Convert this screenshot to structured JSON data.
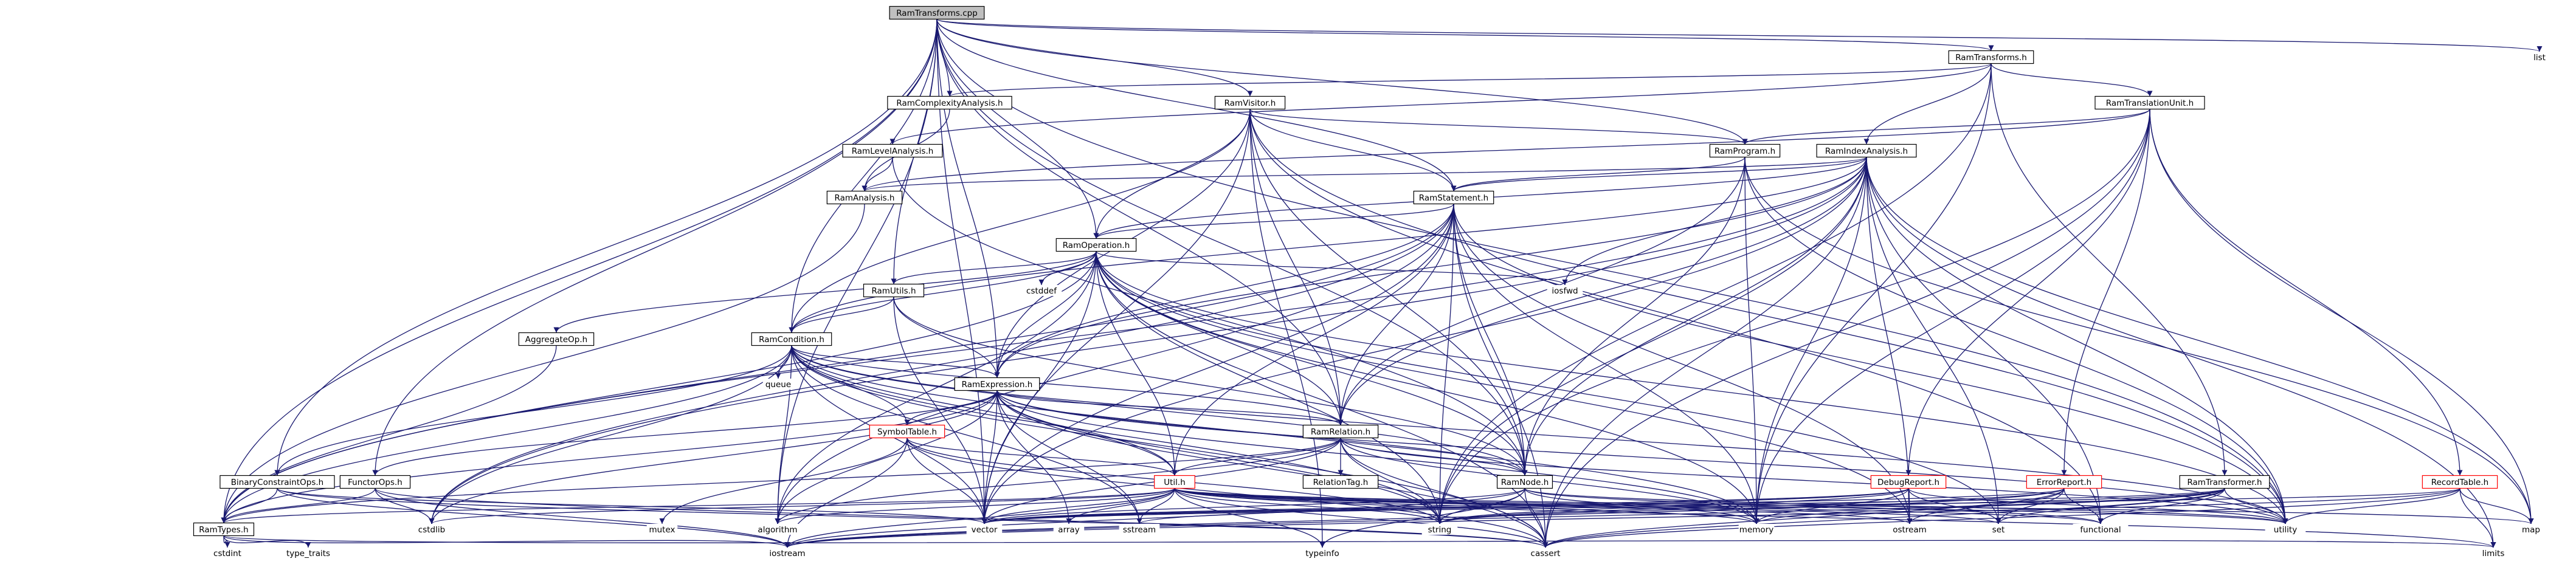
{
  "colors": {
    "edge": "#191970",
    "node_border": "#000000",
    "node_fill": "#ffffff",
    "root_fill": "#bfbfbf",
    "unresolved_border": "#ff0000",
    "text": "#000000"
  },
  "nodes": [
    {
      "id": "n_root",
      "label": "RamTransforms.cpp",
      "kind": "root"
    },
    {
      "id": "n_ramtransforms_h",
      "label": "RamTransforms.h",
      "kind": "header"
    },
    {
      "id": "n_list",
      "label": "list",
      "kind": "system"
    },
    {
      "id": "n_complexity",
      "label": "RamComplexityAnalysis.h",
      "kind": "header"
    },
    {
      "id": "n_visitor",
      "label": "RamVisitor.h",
      "kind": "header"
    },
    {
      "id": "n_translationunit",
      "label": "RamTranslationUnit.h",
      "kind": "header"
    },
    {
      "id": "n_levelanalysis",
      "label": "RamLevelAnalysis.h",
      "kind": "header"
    },
    {
      "id": "n_program",
      "label": "RamProgram.h",
      "kind": "header"
    },
    {
      "id": "n_indexanalysis",
      "label": "RamIndexAnalysis.h",
      "kind": "header"
    },
    {
      "id": "n_analysis",
      "label": "RamAnalysis.h",
      "kind": "header"
    },
    {
      "id": "n_statement",
      "label": "RamStatement.h",
      "kind": "header"
    },
    {
      "id": "n_operation",
      "label": "RamOperation.h",
      "kind": "header"
    },
    {
      "id": "n_utils",
      "label": "RamUtils.h",
      "kind": "header"
    },
    {
      "id": "n_cstddef",
      "label": "cstddef",
      "kind": "system"
    },
    {
      "id": "n_iosfwd",
      "label": "iosfwd",
      "kind": "system"
    },
    {
      "id": "n_aggregateop",
      "label": "AggregateOp.h",
      "kind": "header"
    },
    {
      "id": "n_condition",
      "label": "RamCondition.h",
      "kind": "header"
    },
    {
      "id": "n_queue",
      "label": "queue",
      "kind": "system"
    },
    {
      "id": "n_expression",
      "label": "RamExpression.h",
      "kind": "header"
    },
    {
      "id": "n_symboltable",
      "label": "SymbolTable.h",
      "kind": "unresolved"
    },
    {
      "id": "n_relation",
      "label": "RamRelation.h",
      "kind": "header"
    },
    {
      "id": "n_binaryconstraintops",
      "label": "BinaryConstraintOps.h",
      "kind": "header"
    },
    {
      "id": "n_functorops",
      "label": "FunctorOps.h",
      "kind": "header"
    },
    {
      "id": "n_util",
      "label": "Util.h",
      "kind": "unresolved"
    },
    {
      "id": "n_relationtag",
      "label": "RelationTag.h",
      "kind": "header"
    },
    {
      "id": "n_ramnode",
      "label": "RamNode.h",
      "kind": "header"
    },
    {
      "id": "n_debugreport",
      "label": "DebugReport.h",
      "kind": "unresolved"
    },
    {
      "id": "n_errorreport",
      "label": "ErrorReport.h",
      "kind": "unresolved"
    },
    {
      "id": "n_transformer",
      "label": "RamTransformer.h",
      "kind": "header"
    },
    {
      "id": "n_recordtable",
      "label": "RecordTable.h",
      "kind": "unresolved"
    },
    {
      "id": "n_ramtypes",
      "label": "RamTypes.h",
      "kind": "header"
    },
    {
      "id": "n_cstdlib",
      "label": "cstdlib",
      "kind": "system"
    },
    {
      "id": "n_mutex",
      "label": "mutex",
      "kind": "system"
    },
    {
      "id": "n_algorithm",
      "label": "algorithm",
      "kind": "system"
    },
    {
      "id": "n_vector",
      "label": "vector",
      "kind": "system"
    },
    {
      "id": "n_array",
      "label": "array",
      "kind": "system"
    },
    {
      "id": "n_sstream",
      "label": "sstream",
      "kind": "system"
    },
    {
      "id": "n_string",
      "label": "string",
      "kind": "system"
    },
    {
      "id": "n_typeinfo",
      "label": "typeinfo",
      "kind": "system"
    },
    {
      "id": "n_memory",
      "label": "memory",
      "kind": "system"
    },
    {
      "id": "n_ostream",
      "label": "ostream",
      "kind": "system"
    },
    {
      "id": "n_set",
      "label": "set",
      "kind": "system"
    },
    {
      "id": "n_functional",
      "label": "functional",
      "kind": "system"
    },
    {
      "id": "n_utility",
      "label": "utility",
      "kind": "system"
    },
    {
      "id": "n_map",
      "label": "map",
      "kind": "system"
    },
    {
      "id": "n_cstdint",
      "label": "cstdint",
      "kind": "system"
    },
    {
      "id": "n_type_traits",
      "label": "type_traits",
      "kind": "system"
    },
    {
      "id": "n_iostream",
      "label": "iostream",
      "kind": "system"
    },
    {
      "id": "n_cassert",
      "label": "cassert",
      "kind": "system"
    },
    {
      "id": "n_limits",
      "label": "limits",
      "kind": "system"
    }
  ],
  "edges": [
    [
      "n_root",
      "n_ramtransforms_h"
    ],
    [
      "n_root",
      "n_list"
    ],
    [
      "n_root",
      "n_complexity"
    ],
    [
      "n_root",
      "n_visitor"
    ],
    [
      "n_root",
      "n_program"
    ],
    [
      "n_root",
      "n_statement"
    ],
    [
      "n_root",
      "n_operation"
    ],
    [
      "n_root",
      "n_utils"
    ],
    [
      "n_root",
      "n_condition"
    ],
    [
      "n_root",
      "n_expression"
    ],
    [
      "n_root",
      "n_relation"
    ],
    [
      "n_root",
      "n_ramnode"
    ],
    [
      "n_root",
      "n_binaryconstraintops"
    ],
    [
      "n_root",
      "n_ramtypes"
    ],
    [
      "n_root",
      "n_algorithm"
    ],
    [
      "n_root",
      "n_vector"
    ],
    [
      "n_root",
      "n_utility"
    ],
    [
      "n_root",
      "n_functorops"
    ],
    [
      "n_ramtransforms_h",
      "n_complexity"
    ],
    [
      "n_ramtransforms_h",
      "n_levelanalysis"
    ],
    [
      "n_ramtransforms_h",
      "n_translationunit"
    ],
    [
      "n_ramtransforms_h",
      "n_indexanalysis"
    ],
    [
      "n_ramtransforms_h",
      "n_transformer"
    ],
    [
      "n_ramtransforms_h",
      "n_string"
    ],
    [
      "n_ramtransforms_h",
      "n_memory"
    ],
    [
      "n_complexity",
      "n_analysis"
    ],
    [
      "n_levelanalysis",
      "n_analysis"
    ],
    [
      "n_levelanalysis",
      "n_ramnode"
    ],
    [
      "n_visitor",
      "n_program"
    ],
    [
      "n_visitor",
      "n_statement"
    ],
    [
      "n_visitor",
      "n_operation"
    ],
    [
      "n_visitor",
      "n_condition"
    ],
    [
      "n_visitor",
      "n_expression"
    ],
    [
      "n_visitor",
      "n_relation"
    ],
    [
      "n_visitor",
      "n_ramnode"
    ],
    [
      "n_visitor",
      "n_functional"
    ],
    [
      "n_visitor",
      "n_typeinfo"
    ],
    [
      "n_visitor",
      "n_vector"
    ],
    [
      "n_visitor",
      "n_utility"
    ],
    [
      "n_translationunit",
      "n_analysis"
    ],
    [
      "n_translationunit",
      "n_program"
    ],
    [
      "n_translationunit",
      "n_debugreport"
    ],
    [
      "n_translationunit",
      "n_errorreport"
    ],
    [
      "n_translationunit",
      "n_recordtable"
    ],
    [
      "n_translationunit",
      "n_map"
    ],
    [
      "n_translationunit",
      "n_memory"
    ],
    [
      "n_translationunit",
      "n_string"
    ],
    [
      "n_translationunit",
      "n_cassert"
    ],
    [
      "n_program",
      "n_statement"
    ],
    [
      "n_program",
      "n_relation"
    ],
    [
      "n_program",
      "n_ramnode"
    ],
    [
      "n_program",
      "n_map"
    ],
    [
      "n_program",
      "n_utility"
    ],
    [
      "n_program",
      "n_memory"
    ],
    [
      "n_indexanalysis",
      "n_analysis"
    ],
    [
      "n_indexanalysis",
      "n_statement"
    ],
    [
      "n_indexanalysis",
      "n_operation"
    ],
    [
      "n_indexanalysis",
      "n_condition"
    ],
    [
      "n_indexanalysis",
      "n_expression"
    ],
    [
      "n_indexanalysis",
      "n_relation"
    ],
    [
      "n_indexanalysis",
      "n_ramnode"
    ],
    [
      "n_indexanalysis",
      "n_iosfwd"
    ],
    [
      "n_indexanalysis",
      "n_map"
    ],
    [
      "n_indexanalysis",
      "n_set"
    ],
    [
      "n_indexanalysis",
      "n_vector"
    ],
    [
      "n_indexanalysis",
      "n_functional"
    ],
    [
      "n_indexanalysis",
      "n_ramtypes"
    ],
    [
      "n_indexanalysis",
      "n_cassert"
    ],
    [
      "n_indexanalysis",
      "n_limits"
    ],
    [
      "n_indexanalysis",
      "n_memory"
    ],
    [
      "n_indexanalysis",
      "n_ostream"
    ],
    [
      "n_indexanalysis",
      "n_string"
    ],
    [
      "n_indexanalysis",
      "n_utility"
    ],
    [
      "n_indexanalysis",
      "n_cstdlib"
    ],
    [
      "n_analysis",
      "n_ramtypes"
    ],
    [
      "n_statement",
      "n_operation"
    ],
    [
      "n_statement",
      "n_relation"
    ],
    [
      "n_statement",
      "n_ramnode"
    ],
    [
      "n_statement",
      "n_expression"
    ],
    [
      "n_statement",
      "n_util"
    ],
    [
      "n_statement",
      "n_algorithm"
    ],
    [
      "n_statement",
      "n_cassert"
    ],
    [
      "n_statement",
      "n_memory"
    ],
    [
      "n_statement",
      "n_ostream"
    ],
    [
      "n_statement",
      "n_string"
    ],
    [
      "n_statement",
      "n_utility"
    ],
    [
      "n_statement",
      "n_vector"
    ],
    [
      "n_statement",
      "n_ramtypes"
    ],
    [
      "n_statement",
      "n_cstdlib"
    ],
    [
      "n_operation",
      "n_aggregateop"
    ],
    [
      "n_operation",
      "n_utils"
    ],
    [
      "n_operation",
      "n_condition"
    ],
    [
      "n_operation",
      "n_expression"
    ],
    [
      "n_operation",
      "n_relation"
    ],
    [
      "n_operation",
      "n_ramnode"
    ],
    [
      "n_operation",
      "n_util"
    ],
    [
      "n_operation",
      "n_cstddef"
    ],
    [
      "n_operation",
      "n_iosfwd"
    ],
    [
      "n_operation",
      "n_algorithm"
    ],
    [
      "n_operation",
      "n_vector"
    ],
    [
      "n_operation",
      "n_memory"
    ],
    [
      "n_operation",
      "n_string"
    ],
    [
      "n_operation",
      "n_utility"
    ],
    [
      "n_operation",
      "n_cassert"
    ],
    [
      "n_operation",
      "n_ramtypes"
    ],
    [
      "n_operation",
      "n_ostream"
    ],
    [
      "n_operation",
      "n_set"
    ],
    [
      "n_utils",
      "n_condition"
    ],
    [
      "n_utils",
      "n_expression"
    ],
    [
      "n_utils",
      "n_ramnode"
    ],
    [
      "n_utils",
      "n_vector"
    ],
    [
      "n_aggregateop",
      "n_ramtypes"
    ],
    [
      "n_condition",
      "n_queue"
    ],
    [
      "n_condition",
      "n_expression"
    ],
    [
      "n_condition",
      "n_relation"
    ],
    [
      "n_condition",
      "n_ramnode"
    ],
    [
      "n_condition",
      "n_symboltable"
    ],
    [
      "n_condition",
      "n_binaryconstraintops"
    ],
    [
      "n_condition",
      "n_util"
    ],
    [
      "n_condition",
      "n_algorithm"
    ],
    [
      "n_condition",
      "n_vector"
    ],
    [
      "n_condition",
      "n_memory"
    ],
    [
      "n_condition",
      "n_string"
    ],
    [
      "n_condition",
      "n_utility"
    ],
    [
      "n_condition",
      "n_cstdlib"
    ],
    [
      "n_condition",
      "n_sstream"
    ],
    [
      "n_condition",
      "n_ramtypes"
    ],
    [
      "n_condition",
      "n_cassert"
    ],
    [
      "n_expression",
      "n_relation"
    ],
    [
      "n_expression",
      "n_symboltable"
    ],
    [
      "n_expression",
      "n_functorops"
    ],
    [
      "n_expression",
      "n_util"
    ],
    [
      "n_expression",
      "n_ramnode"
    ],
    [
      "n_expression",
      "n_ramtypes"
    ],
    [
      "n_expression",
      "n_algorithm"
    ],
    [
      "n_expression",
      "n_array"
    ],
    [
      "n_expression",
      "n_sstream"
    ],
    [
      "n_expression",
      "n_string"
    ],
    [
      "n_expression",
      "n_vector"
    ],
    [
      "n_expression",
      "n_memory"
    ],
    [
      "n_expression",
      "n_utility"
    ],
    [
      "n_expression",
      "n_cstdlib"
    ],
    [
      "n_expression",
      "n_cassert"
    ],
    [
      "n_symboltable",
      "n_util"
    ],
    [
      "n_symboltable",
      "n_iostream"
    ],
    [
      "n_symboltable",
      "n_cassert"
    ],
    [
      "n_symboltable",
      "n_vector"
    ],
    [
      "n_symboltable",
      "n_mutex"
    ],
    [
      "n_symboltable",
      "n_string"
    ],
    [
      "n_relation",
      "n_relationtag"
    ],
    [
      "n_relation",
      "n_ramnode"
    ],
    [
      "n_relation",
      "n_util"
    ],
    [
      "n_relation",
      "n_string"
    ],
    [
      "n_relation",
      "n_memory"
    ],
    [
      "n_relation",
      "n_utility"
    ],
    [
      "n_relation",
      "n_vector"
    ],
    [
      "n_relation",
      "n_cassert"
    ],
    [
      "n_relation",
      "n_ramtypes"
    ],
    [
      "n_relation",
      "n_algorithm"
    ],
    [
      "n_binaryconstraintops",
      "n_ramtypes"
    ],
    [
      "n_binaryconstraintops",
      "n_iostream"
    ],
    [
      "n_binaryconstraintops",
      "n_cassert"
    ],
    [
      "n_binaryconstraintops",
      "n_vector"
    ],
    [
      "n_functorops",
      "n_ramtypes"
    ],
    [
      "n_functorops",
      "n_iostream"
    ],
    [
      "n_functorops",
      "n_cassert"
    ],
    [
      "n_functorops",
      "n_cstdlib"
    ],
    [
      "n_util",
      "n_ramtypes"
    ],
    [
      "n_util",
      "n_iostream"
    ],
    [
      "n_util",
      "n_cassert"
    ],
    [
      "n_util",
      "n_cstdlib"
    ],
    [
      "n_util",
      "n_algorithm"
    ],
    [
      "n_util",
      "n_vector"
    ],
    [
      "n_util",
      "n_array"
    ],
    [
      "n_util",
      "n_sstream"
    ],
    [
      "n_util",
      "n_string"
    ],
    [
      "n_util",
      "n_memory"
    ],
    [
      "n_util",
      "n_ostream"
    ],
    [
      "n_util",
      "n_set"
    ],
    [
      "n_util",
      "n_functional"
    ],
    [
      "n_util",
      "n_utility"
    ],
    [
      "n_util",
      "n_map"
    ],
    [
      "n_util",
      "n_limits"
    ],
    [
      "n_util",
      "n_typeinfo"
    ],
    [
      "n_ramnode",
      "n_vector"
    ],
    [
      "n_ramnode",
      "n_functional"
    ],
    [
      "n_ramnode",
      "n_memory"
    ],
    [
      "n_ramnode",
      "n_string"
    ],
    [
      "n_ramnode",
      "n_utility"
    ],
    [
      "n_ramnode",
      "n_cassert"
    ],
    [
      "n_ramnode",
      "n_typeinfo"
    ],
    [
      "n_ramnode",
      "n_iostream"
    ],
    [
      "n_debugreport",
      "n_string"
    ],
    [
      "n_debugreport",
      "n_memory"
    ],
    [
      "n_debugreport",
      "n_sstream"
    ],
    [
      "n_debugreport",
      "n_vector"
    ],
    [
      "n_debugreport",
      "n_ostream"
    ],
    [
      "n_debugreport",
      "n_set"
    ],
    [
      "n_debugreport",
      "n_utility"
    ],
    [
      "n_errorreport",
      "n_string"
    ],
    [
      "n_errorreport",
      "n_set"
    ],
    [
      "n_errorreport",
      "n_ostream"
    ],
    [
      "n_errorreport",
      "n_iostream"
    ],
    [
      "n_errorreport",
      "n_cassert"
    ],
    [
      "n_errorreport",
      "n_functional"
    ],
    [
      "n_errorreport",
      "n_vector"
    ],
    [
      "n_transformer",
      "n_string"
    ],
    [
      "n_transformer",
      "n_memory"
    ],
    [
      "n_transformer",
      "n_utility"
    ],
    [
      "n_transformer",
      "n_functional"
    ],
    [
      "n_transformer",
      "n_iostream"
    ],
    [
      "n_transformer",
      "n_cassert"
    ],
    [
      "n_transformer",
      "n_set"
    ],
    [
      "n_transformer",
      "n_vector"
    ],
    [
      "n_recordtable",
      "n_map"
    ],
    [
      "n_recordtable",
      "n_limits"
    ],
    [
      "n_recordtable",
      "n_cassert"
    ],
    [
      "n_recordtable",
      "n_iostream"
    ],
    [
      "n_recordtable",
      "n_utility"
    ],
    [
      "n_recordtable",
      "n_vector"
    ],
    [
      "n_ramtypes",
      "n_cstdint"
    ],
    [
      "n_ramtypes",
      "n_type_traits"
    ],
    [
      "n_ramtypes",
      "n_iostream"
    ],
    [
      "n_ramtypes",
      "n_limits"
    ]
  ]
}
